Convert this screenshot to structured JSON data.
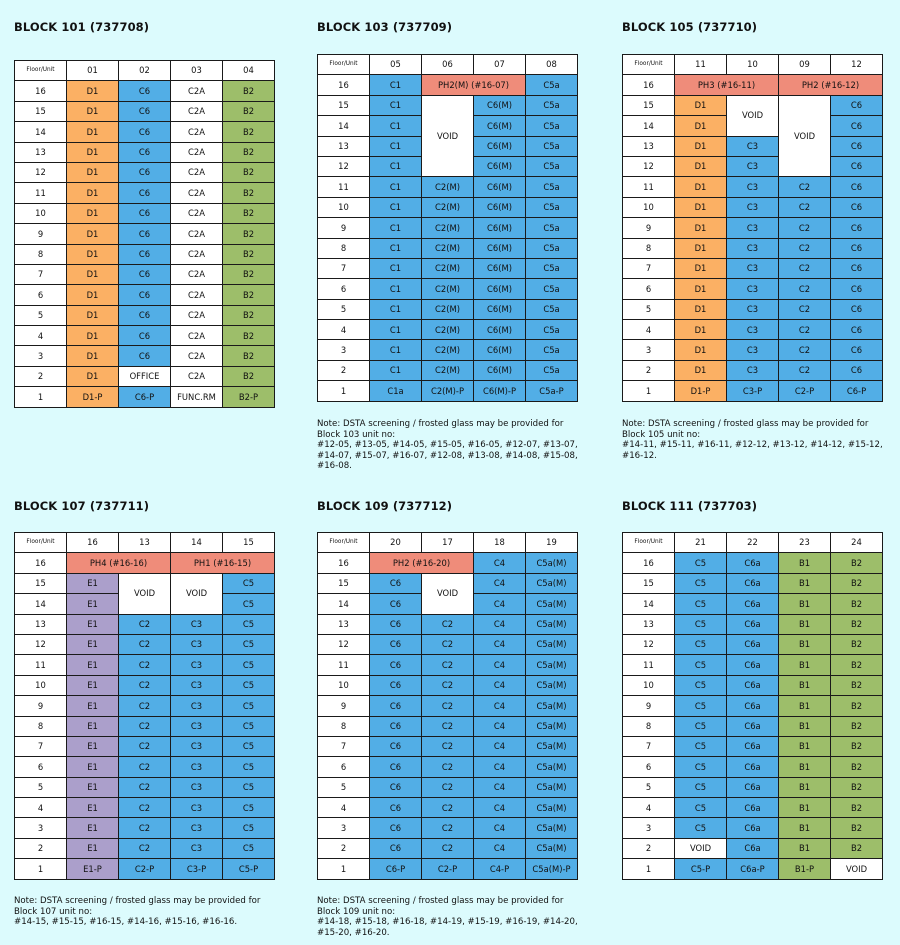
{
  "colors": {
    "background": "#dcfbfd",
    "orange": "#fbb064",
    "blue": "#52aee6",
    "green": "#9dbe6a",
    "purple": "#ab9fcb",
    "red": "#ef8c7a",
    "white": "#ffffff"
  },
  "blocks": [
    {
      "title": "BLOCK 101 (737708)",
      "header": [
        "Floor/Unit",
        "01",
        "02",
        "03",
        "04"
      ],
      "rows": [
        [
          "16",
          "D1",
          "C6",
          "C2A",
          "B2"
        ],
        [
          "15",
          "D1",
          "C6",
          "C2A",
          "B2"
        ],
        [
          "14",
          "D1",
          "C6",
          "C2A",
          "B2"
        ],
        [
          "13",
          "D1",
          "C6",
          "C2A",
          "B2"
        ],
        [
          "12",
          "D1",
          "C6",
          "C2A",
          "B2"
        ],
        [
          "11",
          "D1",
          "C6",
          "C2A",
          "B2"
        ],
        [
          "10",
          "D1",
          "C6",
          "C2A",
          "B2"
        ],
        [
          "9",
          "D1",
          "C6",
          "C2A",
          "B2"
        ],
        [
          "8",
          "D1",
          "C6",
          "C2A",
          "B2"
        ],
        [
          "7",
          "D1",
          "C6",
          "C2A",
          "B2"
        ],
        [
          "6",
          "D1",
          "C6",
          "C2A",
          "B2"
        ],
        [
          "5",
          "D1",
          "C6",
          "C2A",
          "B2"
        ],
        [
          "4",
          "D1",
          "C6",
          "C2A",
          "B2"
        ],
        [
          "3",
          "D1",
          "C6",
          "C2A",
          "B2"
        ],
        [
          "2",
          "D1",
          "OFFICE",
          "C2A",
          "B2"
        ],
        [
          "1",
          "D1-P",
          "C6-P",
          "FUNC.RM",
          "B2-P"
        ]
      ],
      "note": []
    },
    {
      "title": "BLOCK 103 (737709)",
      "header": [
        "Floor/Unit",
        "05",
        "06",
        "07",
        "08"
      ],
      "rows": [
        [
          "16",
          "C1",
          "PH2(M) (#16-07)",
          "",
          "C5a"
        ],
        [
          "15",
          "C1",
          "VOID",
          "C6(M)",
          "C5a"
        ],
        [
          "14",
          "C1",
          "",
          "C6(M)",
          "C5a"
        ],
        [
          "13",
          "C1",
          "",
          "C6(M)",
          "C5a"
        ],
        [
          "12",
          "C1",
          "",
          "C6(M)",
          "C5a"
        ],
        [
          "11",
          "C1",
          "C2(M)",
          "C6(M)",
          "C5a"
        ],
        [
          "10",
          "C1",
          "C2(M)",
          "C6(M)",
          "C5a"
        ],
        [
          "9",
          "C1",
          "C2(M)",
          "C6(M)",
          "C5a"
        ],
        [
          "8",
          "C1",
          "C2(M)",
          "C6(M)",
          "C5a"
        ],
        [
          "7",
          "C1",
          "C2(M)",
          "C6(M)",
          "C5a"
        ],
        [
          "6",
          "C1",
          "C2(M)",
          "C6(M)",
          "C5a"
        ],
        [
          "5",
          "C1",
          "C2(M)",
          "C6(M)",
          "C5a"
        ],
        [
          "4",
          "C1",
          "C2(M)",
          "C6(M)",
          "C5a"
        ],
        [
          "3",
          "C1",
          "C2(M)",
          "C6(M)",
          "C5a"
        ],
        [
          "2",
          "C1",
          "C2(M)",
          "C6(M)",
          "C5a"
        ],
        [
          "1",
          "C1a",
          "C2(M)-P",
          "C6(M)-P",
          "C5a-P"
        ]
      ],
      "note": [
        "Note: DSTA screening / frosted glass may be provided for",
        "Block 103 unit no:",
        "#12-05, #13-05, #14-05, #15-05, #16-05, #12-07, #13-07,",
        "#14-07, #15-07, #16-07, #12-08, #13-08, #14-08, #15-08,",
        "#16-08."
      ]
    },
    {
      "title": "BLOCK 105 (737710)",
      "header": [
        "Floor/Unit",
        "11",
        "10",
        "09",
        "12"
      ],
      "rows": [
        [
          "16",
          "PH3 (#16-11)",
          "",
          "PH2 (#16-12)",
          ""
        ],
        [
          "15",
          "D1",
          "VOID",
          "VOID",
          "C6"
        ],
        [
          "14",
          "D1",
          "",
          "",
          "C6"
        ],
        [
          "13",
          "D1",
          "C3",
          "",
          "C6"
        ],
        [
          "12",
          "D1",
          "C3",
          "",
          "C6"
        ],
        [
          "11",
          "D1",
          "C3",
          "C2",
          "C6"
        ],
        [
          "10",
          "D1",
          "C3",
          "C2",
          "C6"
        ],
        [
          "9",
          "D1",
          "C3",
          "C2",
          "C6"
        ],
        [
          "8",
          "D1",
          "C3",
          "C2",
          "C6"
        ],
        [
          "7",
          "D1",
          "C3",
          "C2",
          "C6"
        ],
        [
          "6",
          "D1",
          "C3",
          "C2",
          "C6"
        ],
        [
          "5",
          "D1",
          "C3",
          "C2",
          "C6"
        ],
        [
          "4",
          "D1",
          "C3",
          "C2",
          "C6"
        ],
        [
          "3",
          "D1",
          "C3",
          "C2",
          "C6"
        ],
        [
          "2",
          "D1",
          "C3",
          "C2",
          "C6"
        ],
        [
          "1",
          "D1-P",
          "C3-P",
          "C2-P",
          "C6-P"
        ]
      ],
      "note": [
        "Note: DSTA screening / frosted glass may be provided for",
        "Block 105 unit no:",
        "#14-11, #15-11, #16-11, #12-12, #13-12, #14-12, #15-12,",
        "#16-12."
      ]
    },
    {
      "title": "BLOCK 107 (737711)",
      "header": [
        "Floor/Unit",
        "16",
        "13",
        "14",
        "15"
      ],
      "rows": [
        [
          "16",
          "PH4 (#16-16)",
          "",
          "PH1 (#16-15)",
          ""
        ],
        [
          "15",
          "E1",
          "VOID",
          "VOID",
          "C5"
        ],
        [
          "14",
          "E1",
          "",
          "",
          "C5"
        ],
        [
          "13",
          "E1",
          "C2",
          "C3",
          "C5"
        ],
        [
          "12",
          "E1",
          "C2",
          "C3",
          "C5"
        ],
        [
          "11",
          "E1",
          "C2",
          "C3",
          "C5"
        ],
        [
          "10",
          "E1",
          "C2",
          "C3",
          "C5"
        ],
        [
          "9",
          "E1",
          "C2",
          "C3",
          "C5"
        ],
        [
          "8",
          "E1",
          "C2",
          "C3",
          "C5"
        ],
        [
          "7",
          "E1",
          "C2",
          "C3",
          "C5"
        ],
        [
          "6",
          "E1",
          "C2",
          "C3",
          "C5"
        ],
        [
          "5",
          "E1",
          "C2",
          "C3",
          "C5"
        ],
        [
          "4",
          "E1",
          "C2",
          "C3",
          "C5"
        ],
        [
          "3",
          "E1",
          "C2",
          "C3",
          "C5"
        ],
        [
          "2",
          "E1",
          "C2",
          "C3",
          "C5"
        ],
        [
          "1",
          "E1-P",
          "C2-P",
          "C3-P",
          "C5-P"
        ]
      ],
      "note": [
        "Note: DSTA screening / frosted glass may be provided for",
        "Block 107 unit no:",
        "#14-15, #15-15, #16-15, #14-16, #15-16, #16-16."
      ]
    },
    {
      "title": "BLOCK 109 (737712)",
      "header": [
        "Floor/Unit",
        "20",
        "17",
        "18",
        "19"
      ],
      "rows": [
        [
          "16",
          "PH2 (#16-20)",
          "",
          "C4",
          "C5a(M)"
        ],
        [
          "15",
          "C6",
          "VOID",
          "C4",
          "C5a(M)"
        ],
        [
          "14",
          "C6",
          "",
          "C4",
          "C5a(M)"
        ],
        [
          "13",
          "C6",
          "C2",
          "C4",
          "C5a(M)"
        ],
        [
          "12",
          "C6",
          "C2",
          "C4",
          "C5a(M)"
        ],
        [
          "11",
          "C6",
          "C2",
          "C4",
          "C5a(M)"
        ],
        [
          "10",
          "C6",
          "C2",
          "C4",
          "C5a(M)"
        ],
        [
          "9",
          "C6",
          "C2",
          "C4",
          "C5a(M)"
        ],
        [
          "8",
          "C6",
          "C2",
          "C4",
          "C5a(M)"
        ],
        [
          "7",
          "C6",
          "C2",
          "C4",
          "C5a(M)"
        ],
        [
          "6",
          "C6",
          "C2",
          "C4",
          "C5a(M)"
        ],
        [
          "5",
          "C6",
          "C2",
          "C4",
          "C5a(M)"
        ],
        [
          "4",
          "C6",
          "C2",
          "C4",
          "C5a(M)"
        ],
        [
          "3",
          "C6",
          "C2",
          "C4",
          "C5a(M)"
        ],
        [
          "2",
          "C6",
          "C2",
          "C4",
          "C5a(M)"
        ],
        [
          "1",
          "C6-P",
          "C2-P",
          "C4-P",
          "C5a(M)-P"
        ]
      ],
      "note": [
        "Note: DSTA screening / frosted glass may be provided for",
        "Block 109 unit no:",
        "#14-18, #15-18, #16-18, #14-19, #15-19, #16-19, #14-20,",
        "#15-20, #16-20."
      ]
    },
    {
      "title": "BLOCK 111 (737703)",
      "header": [
        "Floor/Unit",
        "21",
        "22",
        "23",
        "24"
      ],
      "rows": [
        [
          "16",
          "C5",
          "C6a",
          "B1",
          "B2"
        ],
        [
          "15",
          "C5",
          "C6a",
          "B1",
          "B2"
        ],
        [
          "14",
          "C5",
          "C6a",
          "B1",
          "B2"
        ],
        [
          "13",
          "C5",
          "C6a",
          "B1",
          "B2"
        ],
        [
          "12",
          "C5",
          "C6a",
          "B1",
          "B2"
        ],
        [
          "11",
          "C5",
          "C6a",
          "B1",
          "B2"
        ],
        [
          "10",
          "C5",
          "C6a",
          "B1",
          "B2"
        ],
        [
          "9",
          "C5",
          "C6a",
          "B1",
          "B2"
        ],
        [
          "8",
          "C5",
          "C6a",
          "B1",
          "B2"
        ],
        [
          "7",
          "C5",
          "C6a",
          "B1",
          "B2"
        ],
        [
          "6",
          "C5",
          "C6a",
          "B1",
          "B2"
        ],
        [
          "5",
          "C5",
          "C6a",
          "B1",
          "B2"
        ],
        [
          "4",
          "C5",
          "C6a",
          "B1",
          "B2"
        ],
        [
          "3",
          "C5",
          "C6a",
          "B1",
          "B2"
        ],
        [
          "2",
          "VOID",
          "C6a",
          "B1",
          "B2"
        ],
        [
          "1",
          "C5-P",
          "C6a-P",
          "B1-P",
          "VOID"
        ]
      ],
      "note": []
    }
  ]
}
